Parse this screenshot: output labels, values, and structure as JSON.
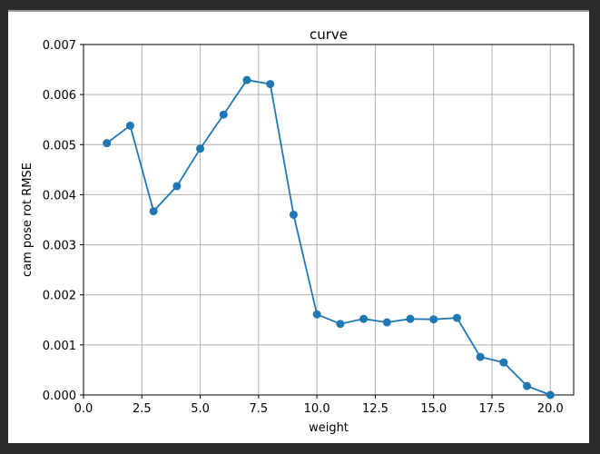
{
  "chart_data": {
    "type": "line",
    "title": "curve",
    "xlabel": "weight",
    "ylabel": "cam pose rot RMSE",
    "xlim": [
      0.0,
      21.0
    ],
    "ylim": [
      0.0,
      0.007
    ],
    "xticks": [
      0.0,
      2.5,
      5.0,
      7.5,
      10.0,
      12.5,
      15.0,
      17.5,
      20.0
    ],
    "xtick_labels": [
      "0.0",
      "2.5",
      "5.0",
      "7.5",
      "10.0",
      "12.5",
      "15.0",
      "17.5",
      "20.0"
    ],
    "yticks": [
      0.0,
      0.001,
      0.002,
      0.003,
      0.004,
      0.005,
      0.006,
      0.007
    ],
    "ytick_labels": [
      "0.000",
      "0.001",
      "0.002",
      "0.003",
      "0.004",
      "0.005",
      "0.006",
      "0.007"
    ],
    "grid": true,
    "marker": "circle",
    "color": "#1f77b4",
    "series": [
      {
        "x": [
          1,
          2,
          3,
          4,
          5,
          6,
          7,
          8,
          9,
          10,
          11,
          12,
          13,
          14,
          15,
          16,
          17,
          18,
          19,
          20
        ],
        "values": [
          0.00503,
          0.00538,
          0.00367,
          0.00417,
          0.00492,
          0.0056,
          0.00629,
          0.00621,
          0.0036,
          0.00161,
          0.00142,
          0.00152,
          0.00145,
          0.00152,
          0.00151,
          0.00154,
          0.00076,
          0.00065,
          0.00018,
          0.0
        ]
      }
    ]
  }
}
